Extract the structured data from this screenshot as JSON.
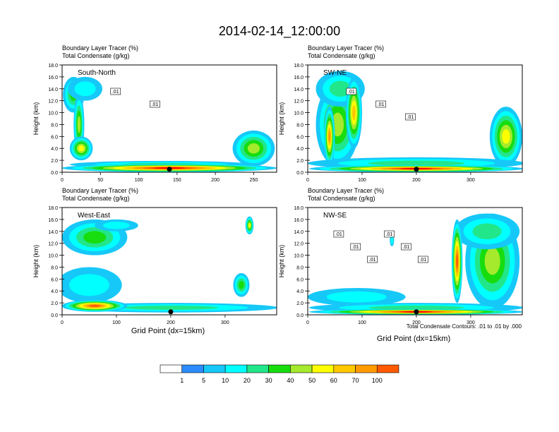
{
  "figure": {
    "title": "2014-02-14_12:00:00",
    "xlabel": "Grid Point (dx=15km)",
    "contour_note": "Total Condensate Contours: .01 to .01 by .000"
  },
  "colorbar": {
    "labels": [
      "1",
      "5",
      "10",
      "20",
      "30",
      "40",
      "50",
      "60",
      "70",
      "100"
    ],
    "colors": [
      "#ffffff",
      "#2b8cff",
      "#16c8f8",
      "#00ffff",
      "#22e68a",
      "#17dd0f",
      "#a5ea2c",
      "#ffff00",
      "#ffc800",
      "#ff9b00",
      "#ff5a00",
      "#ff0000"
    ]
  },
  "chart_data": [
    {
      "type": "heatmap",
      "id": "south-north",
      "name": "South-North",
      "title_line1": "Boundary Layer Tracer   (%)",
      "title_line2": "Total Condensate   (g/kg)",
      "ylabel": "Height (km)",
      "xlim": [
        0,
        280
      ],
      "ylim": [
        0,
        18
      ],
      "xticks": [
        0,
        50,
        100,
        150,
        200,
        250
      ],
      "yticks": [
        0.0,
        2.0,
        4.0,
        6.0,
        8.0,
        10.0,
        12.0,
        14.0,
        16.0,
        18.0
      ],
      "marker_x": 140,
      "contour_labels": [
        ".01",
        ".01"
      ],
      "blobs": [
        {
          "x": 15,
          "y": 13,
          "w": 28,
          "h": 6,
          "level": 4
        },
        {
          "x": 30,
          "y": 14,
          "w": 45,
          "h": 4,
          "level": 2
        },
        {
          "x": 22,
          "y": 8,
          "w": 14,
          "h": 10,
          "level": 5
        },
        {
          "x": 25,
          "y": 4,
          "w": 30,
          "h": 4,
          "level": 6
        },
        {
          "x": 130,
          "y": 1.3,
          "w": 240,
          "h": 1.2,
          "level": 3
        },
        {
          "x": 250,
          "y": 4,
          "w": 55,
          "h": 6,
          "level": 5
        },
        {
          "x": 140,
          "y": 0.7,
          "w": 280,
          "h": 1.4,
          "level": 10
        }
      ]
    },
    {
      "type": "heatmap",
      "id": "sw-ne",
      "name": "SW-NE",
      "title_line1": "Boundary Layer Tracer   (%)",
      "title_line2": "Total Condensate   (g/kg)",
      "ylabel": "Height (km)",
      "xlim": [
        0,
        395
      ],
      "ylim": [
        0,
        18
      ],
      "xticks": [
        0,
        100,
        200,
        300
      ],
      "yticks": [
        0.0,
        2.0,
        4.0,
        6.0,
        8.0,
        10.0,
        12.0,
        14.0,
        16.0,
        18.0
      ],
      "marker_x": 200,
      "contour_labels": [
        ".01",
        ".01",
        ".01"
      ],
      "blobs": [
        {
          "x": 55,
          "y": 8,
          "w": 80,
          "h": 14,
          "level": 5
        },
        {
          "x": 60,
          "y": 14,
          "w": 90,
          "h": 6,
          "level": 3
        },
        {
          "x": 85,
          "y": 10,
          "w": 30,
          "h": 12,
          "level": 7
        },
        {
          "x": 40,
          "y": 6,
          "w": 20,
          "h": 10,
          "level": 8
        },
        {
          "x": 365,
          "y": 6,
          "w": 60,
          "h": 10,
          "level": 6
        },
        {
          "x": 200,
          "y": 1.5,
          "w": 400,
          "h": 2,
          "level": 3
        },
        {
          "x": 200,
          "y": 0.6,
          "w": 395,
          "h": 1.2,
          "level": 10
        }
      ]
    },
    {
      "type": "heatmap",
      "id": "west-east",
      "name": "West-East",
      "title_line1": "Boundary Layer Tracer   (%)",
      "title_line2": "Total Condensate   (g/kg)",
      "ylabel": "Height (km)",
      "xlim": [
        0,
        395
      ],
      "ylim": [
        0,
        18
      ],
      "xticks": [
        0,
        100,
        200,
        300
      ],
      "yticks": [
        0.0,
        2.0,
        4.0,
        6.0,
        8.0,
        10.0,
        12.0,
        14.0,
        16.0,
        18.0
      ],
      "marker_x": 200,
      "contour_labels": [],
      "blobs": [
        {
          "x": 60,
          "y": 13,
          "w": 120,
          "h": 6,
          "level": 4
        },
        {
          "x": 100,
          "y": 15,
          "w": 80,
          "h": 2,
          "level": 2
        },
        {
          "x": 50,
          "y": 5,
          "w": 120,
          "h": 6,
          "level": 2
        },
        {
          "x": 330,
          "y": 5,
          "w": 30,
          "h": 4,
          "level": 4
        },
        {
          "x": 345,
          "y": 15,
          "w": 15,
          "h": 3,
          "level": 6
        },
        {
          "x": 200,
          "y": 1.2,
          "w": 395,
          "h": 1.6,
          "level": 3
        },
        {
          "x": 60,
          "y": 1.5,
          "w": 120,
          "h": 2,
          "level": 9
        }
      ]
    },
    {
      "type": "heatmap",
      "id": "nw-se",
      "name": "NW-SE",
      "title_line1": "Boundary Layer Tracer   (%)",
      "title_line2": "Total Condensate   (g/kg)",
      "ylabel": "Height (km)",
      "xlim": [
        0,
        395
      ],
      "ylim": [
        0,
        18
      ],
      "xticks": [
        0,
        100,
        200,
        300
      ],
      "yticks": [
        0.0,
        2.0,
        4.0,
        6.0,
        8.0,
        10.0,
        12.0,
        14.0,
        16.0,
        18.0
      ],
      "marker_x": 200,
      "contour_labels": [
        ".01",
        ".01",
        ".01",
        ".01",
        ".01",
        ".01"
      ],
      "blobs": [
        {
          "x": 340,
          "y": 9,
          "w": 100,
          "h": 16,
          "level": 5
        },
        {
          "x": 330,
          "y": 14,
          "w": 120,
          "h": 6,
          "level": 3
        },
        {
          "x": 275,
          "y": 9,
          "w": 20,
          "h": 14,
          "level": 9
        },
        {
          "x": 155,
          "y": 12.5,
          "w": 8,
          "h": 2,
          "level": 2
        },
        {
          "x": 90,
          "y": 3,
          "w": 180,
          "h": 3,
          "level": 2
        },
        {
          "x": 200,
          "y": 1.2,
          "w": 395,
          "h": 1.6,
          "level": 3
        },
        {
          "x": 200,
          "y": 0.5,
          "w": 395,
          "h": 1.0,
          "level": 10
        }
      ]
    }
  ]
}
